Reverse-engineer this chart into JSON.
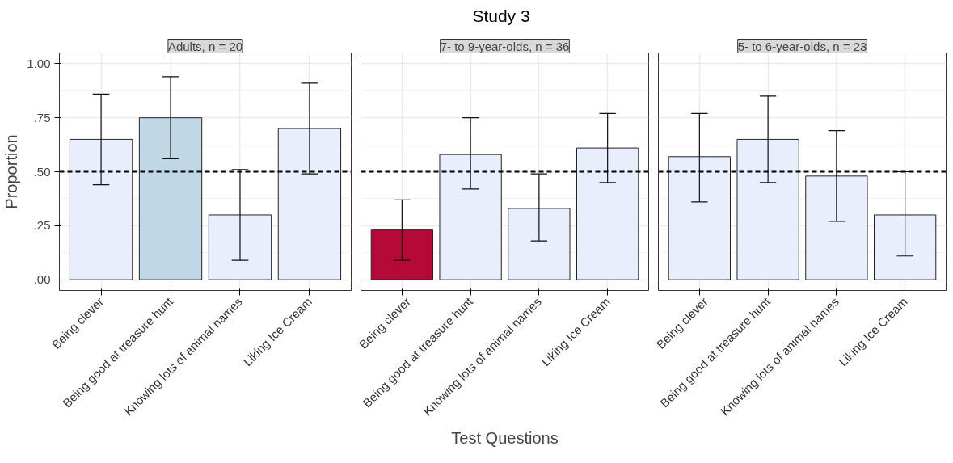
{
  "chart_data": [
    {
      "type": "bar",
      "title": "Adults, n = 20",
      "ylabel": "Proportion",
      "annotations": [
        "Study 3"
      ],
      "categories": [
        "Being clever",
        "Being good at treasure hunt",
        "Knowing lots of animal names",
        "Liking Ice Cream"
      ],
      "values": [
        0.65,
        0.75,
        0.3,
        0.7
      ],
      "colors": [
        "#e8eefc",
        "#c0d8e6",
        "#e8eefc",
        "#e8eefc"
      ],
      "errors": [
        [
          0.44,
          0.86
        ],
        [
          0.56,
          0.94
        ],
        [
          0.09,
          0.51
        ],
        [
          0.49,
          0.91
        ]
      ],
      "ylim": [
        -0.05,
        1.05
      ],
      "yticks": [
        {
          "value": 0,
          "label": ".00"
        },
        {
          "value": 0.25,
          "label": ".25"
        },
        {
          "value": 0.5,
          "label": ".50"
        },
        {
          "value": 0.75,
          "label": ".75"
        },
        {
          "value": 1,
          "label": "1.00"
        }
      ],
      "ref_lines": [
        {
          "axis": "y",
          "value": 0.5,
          "label": null,
          "color": "#000000",
          "line_style": "dashed"
        }
      ],
      "grid": true
    },
    {
      "type": "bar",
      "title": "7- to 9-year-olds, n = 36",
      "xlabel": "Test Questions",
      "categories": [
        "Being clever",
        "Being good at treasure hunt",
        "Knowing lots of animal names",
        "Liking Ice Cream"
      ],
      "values": [
        0.23,
        0.58,
        0.33,
        0.61
      ],
      "colors": [
        "#b50a37",
        "#e8eefc",
        "#e8eefc",
        "#e8eefc"
      ],
      "errors": [
        [
          0.09,
          0.37
        ],
        [
          0.42,
          0.75
        ],
        [
          0.18,
          0.49
        ],
        [
          0.45,
          0.77
        ]
      ],
      "ylim": [
        -0.05,
        1.05
      ],
      "yticks": [
        {
          "value": 0,
          "label": null
        },
        {
          "value": 0.25,
          "label": null
        },
        {
          "value": 0.5,
          "label": null
        },
        {
          "value": 0.75,
          "label": null
        },
        {
          "value": 1,
          "label": null
        }
      ],
      "ref_lines": [
        {
          "axis": "y",
          "value": 0.5,
          "label": null,
          "color": "#000000",
          "line_style": "dashed"
        }
      ],
      "grid": true,
      "tick_labels": "x"
    },
    {
      "type": "bar",
      "title": "5- to 6-year-olds, n = 23",
      "categories": [
        "Being clever",
        "Being good at treasure hunt",
        "Knowing lots of animal names",
        "Liking Ice Cream"
      ],
      "values": [
        0.57,
        0.65,
        0.48,
        0.3
      ],
      "colors": [
        "#e8eefc",
        "#e8eefc",
        "#e8eefc",
        "#e8eefc"
      ],
      "errors": [
        [
          0.36,
          0.77
        ],
        [
          0.45,
          0.85
        ],
        [
          0.27,
          0.69
        ],
        [
          0.11,
          0.5
        ]
      ],
      "ylim": [
        -0.05,
        1.05
      ],
      "yticks": [
        {
          "value": 0,
          "label": null
        },
        {
          "value": 0.25,
          "label": null
        },
        {
          "value": 0.5,
          "label": null
        },
        {
          "value": 0.75,
          "label": null
        },
        {
          "value": 1,
          "label": null
        }
      ],
      "ref_lines": [
        {
          "axis": "y",
          "value": 0.5,
          "label": null,
          "color": "#000000",
          "line_style": "dashed"
        }
      ],
      "grid": true,
      "tick_labels": "x"
    }
  ]
}
